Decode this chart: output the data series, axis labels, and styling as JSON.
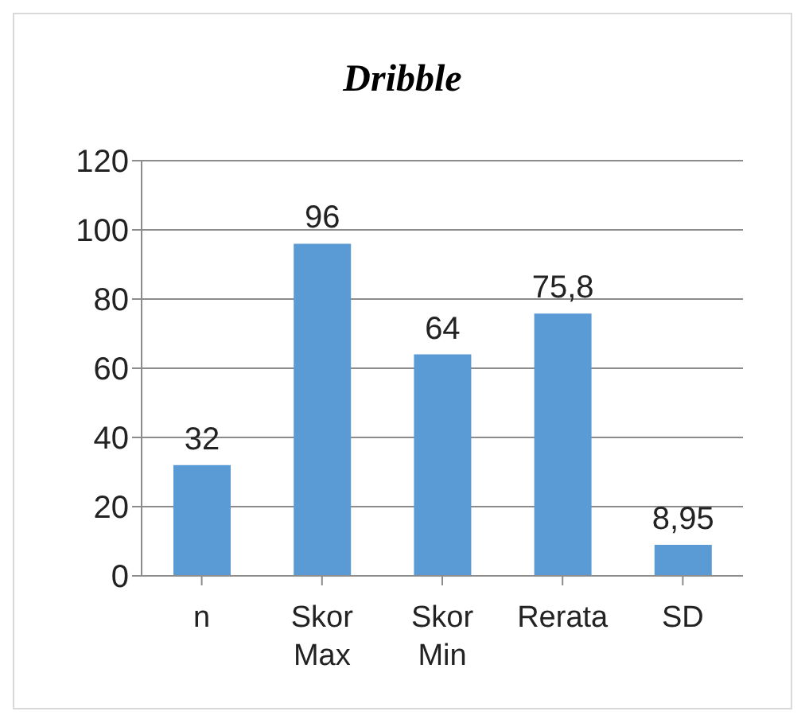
{
  "chart_data": {
    "type": "bar",
    "title": "Dribble",
    "categories": [
      "n",
      "Skor Max",
      "Skor Min",
      "Rerata",
      "SD"
    ],
    "values": [
      32,
      96,
      64,
      75.8,
      8.95
    ],
    "value_labels": [
      "32",
      "96",
      "64",
      "75,8",
      "8,95"
    ],
    "color": "#5b9bd5",
    "ylim": [
      0,
      120
    ],
    "yticks": [
      0,
      20,
      40,
      60,
      80,
      100,
      120
    ],
    "grid": "y"
  }
}
